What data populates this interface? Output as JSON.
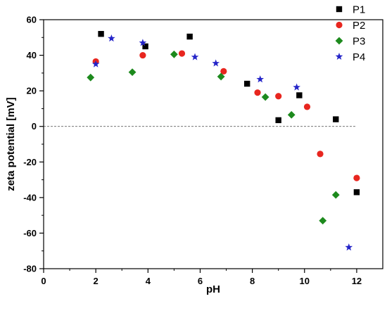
{
  "chart_data": {
    "type": "scatter",
    "xlabel": "pH",
    "ylabel": "zeta potential [mV]",
    "xlim": [
      0,
      13
    ],
    "ylim": [
      -80,
      60
    ],
    "xticks": [
      0,
      2,
      4,
      6,
      8,
      10,
      12
    ],
    "yticks": [
      -80,
      -60,
      -40,
      -20,
      0,
      20,
      40,
      60
    ],
    "xtick_labels": [
      "0",
      "2",
      "4",
      "6",
      "8",
      "10",
      "12"
    ],
    "ytick_labels": [
      "-80",
      "-60",
      "-40",
      "-20",
      "0",
      "20",
      "40",
      "60"
    ],
    "zero_reference_line": "dashed",
    "grid": false,
    "legend_position": "top-right",
    "series": [
      {
        "name": "P1",
        "marker": "square",
        "color": "#000000",
        "points": [
          [
            2.2,
            52
          ],
          [
            3.9,
            45
          ],
          [
            5.6,
            50.5
          ],
          [
            7.8,
            24
          ],
          [
            9.0,
            3.5
          ],
          [
            9.8,
            17.5
          ],
          [
            11.2,
            4
          ],
          [
            12.0,
            -37
          ]
        ]
      },
      {
        "name": "P2",
        "marker": "circle",
        "color": "#e8261f",
        "points": [
          [
            2.0,
            36.5
          ],
          [
            3.8,
            40
          ],
          [
            5.3,
            41
          ],
          [
            6.9,
            31
          ],
          [
            8.2,
            19
          ],
          [
            9.0,
            17
          ],
          [
            10.1,
            11
          ],
          [
            10.6,
            -15.5
          ],
          [
            12.0,
            -29
          ]
        ]
      },
      {
        "name": "P3",
        "marker": "diamond",
        "color": "#1d8a1d",
        "points": [
          [
            1.8,
            27.5
          ],
          [
            3.4,
            30.5
          ],
          [
            5.0,
            40.5
          ],
          [
            6.8,
            28
          ],
          [
            8.5,
            16.5
          ],
          [
            9.5,
            6.5
          ],
          [
            10.7,
            -53
          ],
          [
            11.2,
            -38.5
          ]
        ]
      },
      {
        "name": "P4",
        "marker": "star",
        "color": "#2424c8",
        "points": [
          [
            2.0,
            35
          ],
          [
            2.6,
            49.5
          ],
          [
            3.8,
            47
          ],
          [
            5.8,
            39
          ],
          [
            6.6,
            35.5
          ],
          [
            8.3,
            26.5
          ],
          [
            9.7,
            22
          ],
          [
            11.7,
            -68
          ]
        ]
      }
    ]
  }
}
